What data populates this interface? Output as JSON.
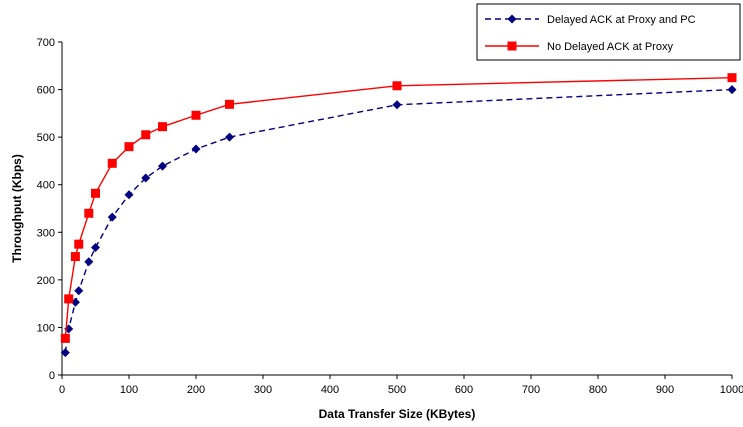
{
  "chart_data": {
    "type": "line",
    "title": "",
    "xlabel": "Data Transfer Size (KBytes)",
    "ylabel": "Throughput (Kbps)",
    "xlim": [
      0,
      1000
    ],
    "ylim": [
      0,
      700
    ],
    "xticks": [
      0,
      100,
      200,
      300,
      400,
      500,
      600,
      700,
      800,
      900,
      1000
    ],
    "yticks": [
      0,
      100,
      200,
      300,
      400,
      500,
      600,
      700
    ],
    "grid": false,
    "legend_position": "top-right",
    "series": [
      {
        "name": "Delayed ACK at Proxy and PC",
        "color": "#000080",
        "line_style": "dashed",
        "marker": "diamond",
        "x": [
          5,
          10,
          20,
          25,
          40,
          50,
          75,
          100,
          125,
          150,
          200,
          250,
          500,
          1000
        ],
        "y": [
          47,
          97,
          153,
          177,
          238,
          268,
          332,
          379,
          414,
          439,
          475,
          500,
          568,
          600
        ]
      },
      {
        "name": "No Delayed ACK at Proxy",
        "color": "#ff0000",
        "line_style": "solid",
        "marker": "square",
        "x": [
          5,
          10,
          20,
          25,
          40,
          50,
          75,
          100,
          125,
          150,
          200,
          250,
          500,
          1000
        ],
        "y": [
          77,
          160,
          249,
          275,
          340,
          382,
          445,
          480,
          505,
          522,
          546,
          569,
          608,
          625
        ]
      }
    ]
  }
}
